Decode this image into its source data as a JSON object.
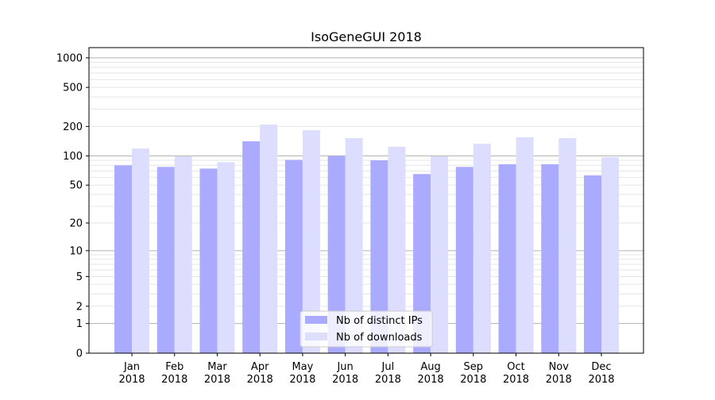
{
  "chart_data": {
    "type": "bar",
    "title": "IsoGeneGUI 2018",
    "xlabel": "",
    "ylabel": "",
    "yscale": "symlog (log10(1+y))",
    "ylim": [
      0,
      1270
    ],
    "yticks": [
      0,
      1,
      2,
      5,
      10,
      20,
      50,
      100,
      200,
      500,
      1000
    ],
    "grid": true,
    "legend_position": "bottom-center",
    "categories": [
      "Jan\n2018",
      "Feb\n2018",
      "Mar\n2018",
      "Apr\n2018",
      "May\n2018",
      "Jun\n2018",
      "Jul\n2018",
      "Aug\n2018",
      "Sep\n2018",
      "Oct\n2018",
      "Nov\n2018",
      "Dec\n2018"
    ],
    "series": [
      {
        "name": "Nb of distinct IPs",
        "color": "#aaaaff",
        "values": [
          80,
          77,
          74,
          141,
          91,
          100,
          90,
          65,
          77,
          82,
          82,
          63
        ]
      },
      {
        "name": "Nb of downloads",
        "color": "#ddddff",
        "values": [
          119,
          99,
          86,
          209,
          183,
          152,
          124,
          99,
          133,
          155,
          152,
          97
        ]
      }
    ]
  }
}
